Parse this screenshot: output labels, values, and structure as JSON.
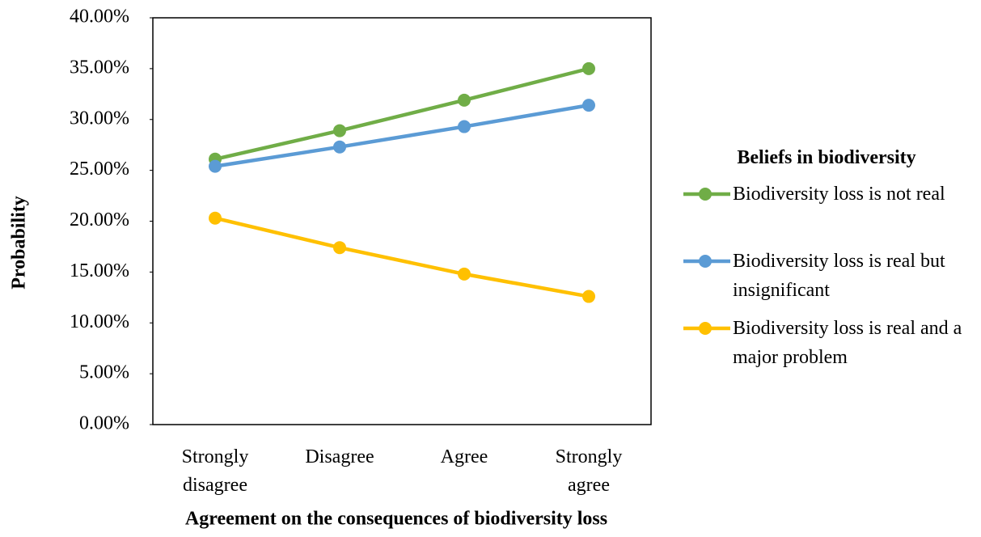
{
  "chart_data": {
    "type": "line",
    "x_label": "Agreement on the consequences of biodiversity loss",
    "y_label": "Probability",
    "legend_title": "Beliefs in biodiversity",
    "legend_position": "right",
    "grid": false,
    "categories": [
      "Strongly disagree",
      "Disagree",
      "Agree",
      "Strongly agree"
    ],
    "series": [
      {
        "name": "Biodiversity loss is not real",
        "color": "#70ad47",
        "values": [
          26.1,
          28.9,
          31.9,
          35.0
        ]
      },
      {
        "name": "Biodiversity loss is real but insignificant",
        "color": "#5b9bd5",
        "values": [
          25.4,
          27.3,
          29.3,
          31.4
        ]
      },
      {
        "name": "Biodiversity loss is real and a major problem",
        "color": "#ffc000",
        "values": [
          20.3,
          17.4,
          14.8,
          12.6
        ]
      }
    ],
    "ylim": [
      0,
      40
    ],
    "yticks": [
      {
        "value": 0,
        "label": "0.00%"
      },
      {
        "value": 5,
        "label": "5.00%"
      },
      {
        "value": 10,
        "label": "10.00%"
      },
      {
        "value": 15,
        "label": "15.00%"
      },
      {
        "value": 20,
        "label": "20.00%"
      },
      {
        "value": 25,
        "label": "25.00%"
      },
      {
        "value": 30,
        "label": "30.00%"
      },
      {
        "value": 35,
        "label": "35.00%"
      },
      {
        "value": 40,
        "label": "40.00%"
      }
    ]
  }
}
